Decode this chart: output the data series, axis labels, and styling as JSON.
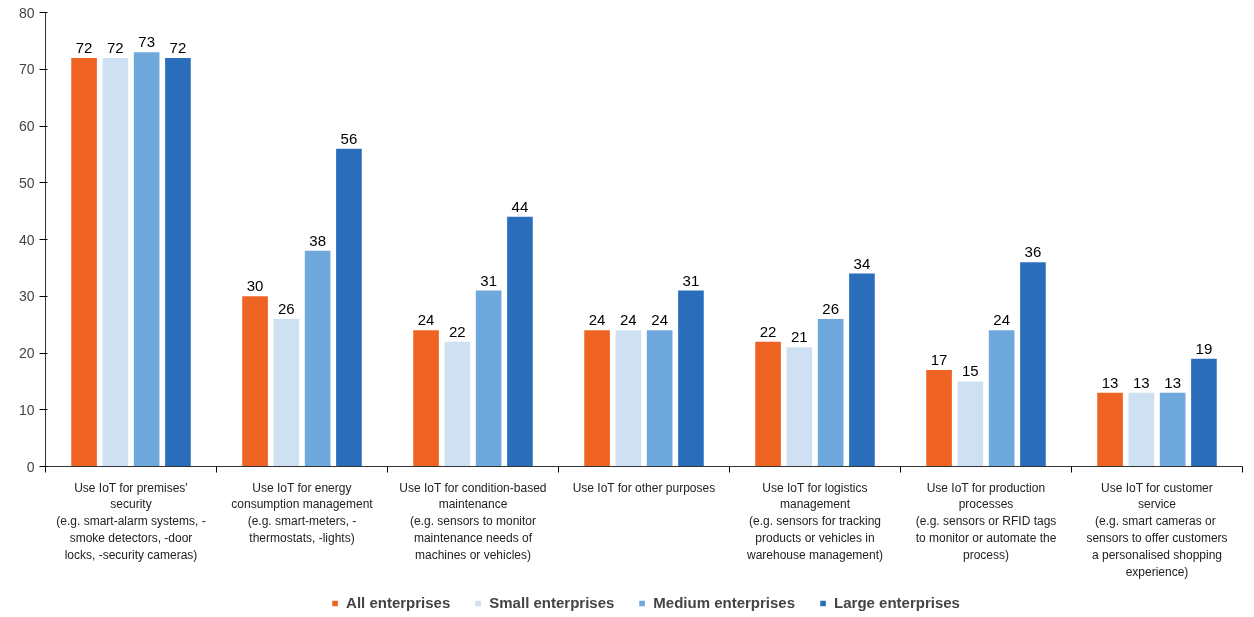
{
  "chart_data": {
    "type": "bar",
    "categories": [
      "Use IoT for premises'\nsecurity\n(e.g. smart-alarm systems, -\nsmoke detectors, -door\nlocks, -security cameras)",
      "Use IoT for energy\nconsumption management\n(e.g. smart-meters, -\nthermostats, -lights)",
      "Use IoT for condition-based\nmaintenance\n(e.g. sensors to monitor\nmaintenance needs of\nmachines or vehicles)",
      "Use IoT for other purposes",
      "Use IoT for logistics\nmanagement\n(e.g. sensors for tracking\nproducts or vehicles in\nwarehouse management)",
      "Use IoT for production\nprocesses\n(e.g. sensors or RFID tags\nto monitor or automate the\nprocess)",
      "Use IoT for customer\nservice\n(e.g. smart cameras  or\nsensors to offer customers\na personalised shopping\nexperience)"
    ],
    "series": [
      {
        "name": "All enterprises",
        "color": "#f06423",
        "values": [
          72,
          30,
          24,
          24,
          22,
          17,
          13
        ]
      },
      {
        "name": "Small enterprises",
        "color": "#cfe0f3",
        "values": [
          72,
          26,
          22,
          24,
          21,
          15,
          13
        ]
      },
      {
        "name": "Medium enterprises",
        "color": "#6fa8dc",
        "values": [
          73,
          38,
          31,
          24,
          26,
          24,
          13
        ]
      },
      {
        "name": "Large enterprises",
        "color": "#2a6ebb",
        "values": [
          72,
          56,
          44,
          31,
          34,
          36,
          19
        ]
      }
    ],
    "ylim": [
      0,
      80
    ],
    "yticks": [
      0,
      10,
      20,
      30,
      40,
      50,
      60,
      70,
      80
    ],
    "data_labels": true,
    "grid": false,
    "legend": "bottom"
  }
}
